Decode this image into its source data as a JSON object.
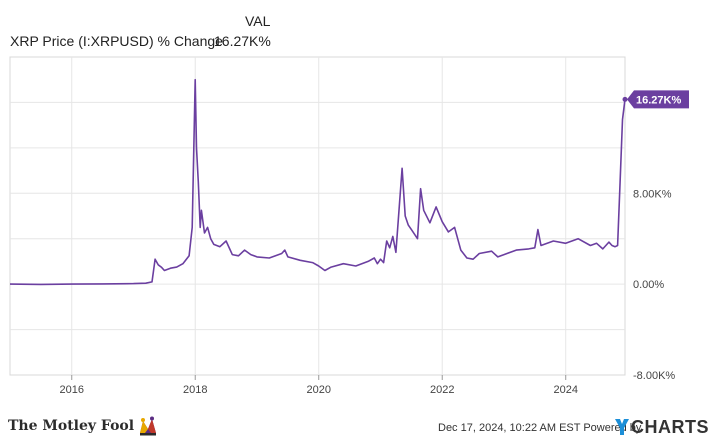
{
  "legend": {
    "column_header": "VAL",
    "series_name": "XRP Price (I:XRPUSD) % Change",
    "series_value": "16.27K%"
  },
  "chart_data": {
    "type": "line",
    "title": "",
    "xlabel": "",
    "ylabel": "",
    "x_ticks": [
      "2016",
      "2018",
      "2020",
      "2022",
      "2024"
    ],
    "y_ticks": [
      "8.00K%",
      "0.00%",
      "-8.00K%"
    ],
    "ylim": [
      -8000,
      20000
    ],
    "grid": true,
    "end_label": "16.27K%",
    "series": [
      {
        "name": "XRP Price (I:XRPUSD) % Change",
        "color": "#6b3fa0",
        "x": [
          2015.0,
          2015.5,
          2016.0,
          2016.5,
          2017.0,
          2017.2,
          2017.3,
          2017.35,
          2017.4,
          2017.45,
          2017.5,
          2017.6,
          2017.7,
          2017.8,
          2017.9,
          2017.95,
          2018.0,
          2018.02,
          2018.05,
          2018.08,
          2018.1,
          2018.15,
          2018.2,
          2018.25,
          2018.3,
          2018.4,
          2018.5,
          2018.6,
          2018.7,
          2018.8,
          2018.9,
          2019.0,
          2019.2,
          2019.4,
          2019.45,
          2019.5,
          2019.7,
          2019.9,
          2020.0,
          2020.1,
          2020.2,
          2020.4,
          2020.6,
          2020.8,
          2020.9,
          2020.95,
          2021.0,
          2021.05,
          2021.1,
          2021.15,
          2021.2,
          2021.25,
          2021.3,
          2021.35,
          2021.4,
          2021.45,
          2021.5,
          2021.6,
          2021.65,
          2021.7,
          2021.8,
          2021.9,
          2022.0,
          2022.1,
          2022.2,
          2022.3,
          2022.4,
          2022.5,
          2022.6,
          2022.8,
          2022.9,
          2023.0,
          2023.2,
          2023.4,
          2023.5,
          2023.55,
          2023.6,
          2023.8,
          2024.0,
          2024.2,
          2024.4,
          2024.5,
          2024.6,
          2024.7,
          2024.75,
          2024.8,
          2024.84,
          2024.88,
          2024.92,
          2024.96
        ],
        "y": [
          0,
          -20,
          0,
          20,
          50,
          80,
          200,
          2200,
          1700,
          1500,
          1200,
          1400,
          1500,
          1800,
          2500,
          5000,
          18000,
          12000,
          9000,
          5000,
          6500,
          4500,
          5000,
          4000,
          3500,
          3300,
          3800,
          2600,
          2500,
          3000,
          2600,
          2400,
          2300,
          2700,
          3000,
          2400,
          2100,
          1900,
          1600,
          1200,
          1500,
          1800,
          1600,
          2000,
          2300,
          1800,
          2200,
          1900,
          3800,
          3200,
          4200,
          2800,
          6500,
          10200,
          6000,
          5200,
          4800,
          4000,
          8400,
          6500,
          5400,
          6800,
          5500,
          4600,
          5000,
          3000,
          2300,
          2200,
          2700,
          2900,
          2400,
          2600,
          3000,
          3100,
          3200,
          4800,
          3400,
          3800,
          3600,
          4000,
          3400,
          3600,
          3100,
          3700,
          3400,
          3300,
          3400,
          9000,
          14500,
          16270
        ]
      }
    ]
  },
  "footer": {
    "brand_left": "The Motley Fool",
    "powered_text": "Dec 17, 2024, 10:22 AM EST  Powered by",
    "brand_right": "CHARTS"
  }
}
